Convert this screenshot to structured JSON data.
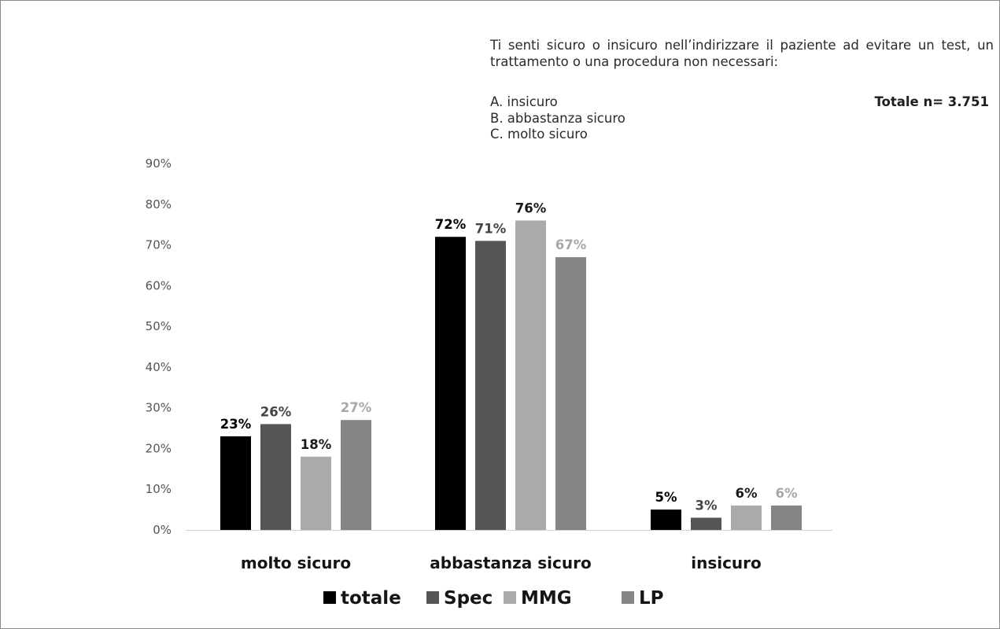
{
  "question": "Ti senti sicuro o insicuro nell’indirizzare il paziente ad evitare un test, un trattamento o una procedura non necessari:",
  "options": [
    "A. insicuro",
    "B. abbastanza sicuro",
    "C. molto sicuro"
  ],
  "total_label": "Totale n= 3.751",
  "chart_data": {
    "type": "bar",
    "categories": [
      "molto sicuro",
      "abbastanza sicuro",
      "insicuro"
    ],
    "series": [
      {
        "name": "totale",
        "values": [
          23,
          72,
          5
        ],
        "labels": [
          "23%",
          "72%",
          "5%"
        ],
        "color": "#000000",
        "label_color": "#000000"
      },
      {
        "name": "Spec",
        "values": [
          26,
          71,
          3
        ],
        "labels": [
          "26%",
          "71%",
          "3%"
        ],
        "color": "#555555",
        "label_color": "#444444"
      },
      {
        "name": "MMG",
        "values": [
          18,
          76,
          6
        ],
        "labels": [
          "18%",
          "76%",
          "6%"
        ],
        "color": "#aaaaaa",
        "label_color": "#1a1a1a"
      },
      {
        "name": "LP",
        "values": [
          27,
          67,
          6
        ],
        "labels": [
          "27%",
          "67%",
          "6%"
        ],
        "color": "#858585",
        "label_color": "#a8a8a8"
      }
    ],
    "y_ticks": [
      "0%",
      "10%",
      "20%",
      "30%",
      "40%",
      "50%",
      "60%",
      "70%",
      "80%",
      "90%"
    ],
    "ylim": [
      0,
      90
    ],
    "grid": false,
    "legend_position": "bottom"
  }
}
